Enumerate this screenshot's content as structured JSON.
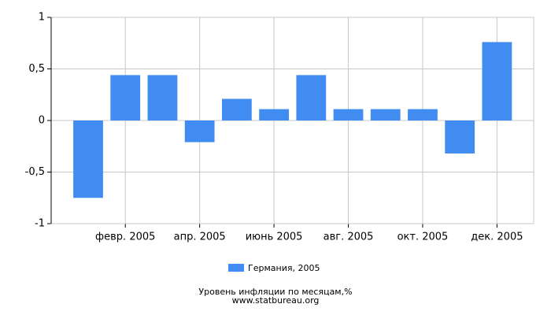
{
  "chart_data": {
    "type": "bar",
    "categories": [
      null,
      "февр. 2005",
      null,
      "апр. 2005",
      null,
      "июнь 2005",
      null,
      "авг. 2005",
      null,
      "окт. 2005",
      null,
      "дек. 2005"
    ],
    "series": [
      {
        "name": "Германия, 2005",
        "color": "#418cf0",
        "values": [
          -0.75,
          0.44,
          0.44,
          -0.21,
          0.21,
          0.11,
          0.44,
          0.11,
          0.11,
          0.11,
          -0.32,
          0.76
        ]
      }
    ],
    "ylim": [
      -1,
      1
    ],
    "yticks": [
      -1,
      {
        "value": -0.5,
        "label": "-0,5"
      },
      0,
      {
        "value": 0.5,
        "label": "0,5"
      },
      1
    ],
    "grid": true,
    "legend": "bottom",
    "caption": "Уровень инфляции по месяцам,%",
    "source": "www.statbureau.org"
  }
}
